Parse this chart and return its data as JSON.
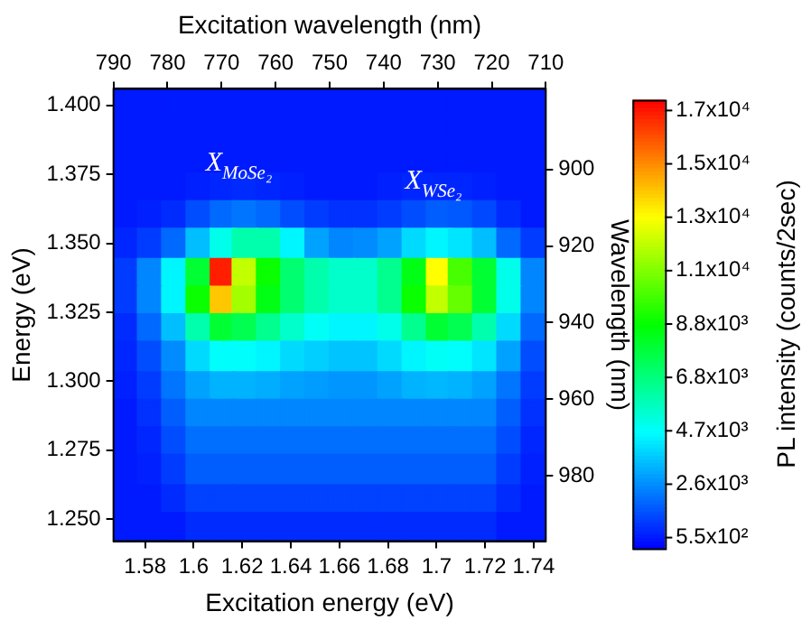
{
  "chart_data": {
    "type": "scatter",
    "marker": "square",
    "xlabel": "Excitation energy (eV)",
    "ylabel": "Energy (eV)",
    "x2label": "Excitation wavelength (nm)",
    "y2label": "Wavelength (nm)",
    "clabel": "PL intensity (counts/2sec)",
    "x": [
      1.572,
      1.582,
      1.592,
      1.602,
      1.612,
      1.621,
      1.631,
      1.641,
      1.651,
      1.661,
      1.671,
      1.681,
      1.691,
      1.701,
      1.71,
      1.72,
      1.73,
      1.74
    ],
    "series": [
      {
        "values": [
          1.401,
          1.401,
          1.401,
          1.401,
          1.401,
          1.401,
          1.401,
          1.401,
          1.401,
          1.401,
          1.401,
          1.401,
          1.401,
          1.401,
          1.401,
          1.401,
          1.401,
          1.401
        ],
        "cvalues": [
          600,
          600,
          600,
          600,
          600,
          600,
          600,
          600,
          600,
          600,
          600,
          600,
          600,
          600,
          600,
          600,
          600,
          600
        ],
        "colors": [
          "#001aff",
          "#001aff",
          "#001aff",
          "#001aff",
          "#001aff",
          "#001aff",
          "#001aff",
          "#001aff",
          "#001aff",
          "#001aff",
          "#001aff",
          "#001aff",
          "#001aff",
          "#001aff",
          "#001aff",
          "#001aff",
          "#001aff",
          "#001aff"
        ]
      },
      {
        "values": [
          1.391,
          1.391,
          1.391,
          1.391,
          1.391,
          1.391,
          1.391,
          1.391,
          1.391,
          1.391,
          1.391,
          1.391,
          1.391,
          1.391,
          1.391,
          1.391,
          1.391,
          1.391
        ],
        "cvalues": [
          600,
          600,
          600,
          600,
          600,
          600,
          600,
          600,
          600,
          600,
          600,
          600,
          600,
          600,
          600,
          600,
          600,
          600
        ],
        "colors": [
          "#001aff",
          "#001aff",
          "#001aff",
          "#001aff",
          "#001aff",
          "#001aff",
          "#001aff",
          "#001aff",
          "#001aff",
          "#001aff",
          "#001aff",
          "#001aff",
          "#001aff",
          "#001aff",
          "#001aff",
          "#001aff",
          "#001aff",
          "#001aff"
        ]
      },
      {
        "values": [
          1.38,
          1.38,
          1.38,
          1.38,
          1.38,
          1.38,
          1.38,
          1.38,
          1.38,
          1.38,
          1.38,
          1.38,
          1.38,
          1.38,
          1.38,
          1.38,
          1.38,
          1.38
        ],
        "cvalues": [
          600,
          600,
          600,
          600,
          600,
          600,
          600,
          600,
          600,
          600,
          600,
          600,
          600,
          600,
          600,
          600,
          600,
          600
        ],
        "colors": [
          "#001aff",
          "#001aff",
          "#001aff",
          "#001aff",
          "#001aff",
          "#001aff",
          "#001aff",
          "#001aff",
          "#001aff",
          "#001aff",
          "#001aff",
          "#001aff",
          "#001aff",
          "#001aff",
          "#001aff",
          "#001aff",
          "#001aff",
          "#001aff"
        ]
      },
      {
        "values": [
          1.37,
          1.37,
          1.37,
          1.37,
          1.37,
          1.37,
          1.37,
          1.37,
          1.37,
          1.37,
          1.37,
          1.37,
          1.37,
          1.37,
          1.37,
          1.37,
          1.37,
          1.37
        ],
        "cvalues": [
          600,
          600,
          600,
          700,
          800,
          900,
          800,
          700,
          600,
          600,
          600,
          700,
          800,
          800,
          800,
          700,
          600,
          600
        ],
        "colors": [
          "#001aff",
          "#001aff",
          "#001aff",
          "#0020ff",
          "#0026ff",
          "#002bff",
          "#0026ff",
          "#0020ff",
          "#001aff",
          "#001aff",
          "#001aff",
          "#0020ff",
          "#0026ff",
          "#0026ff",
          "#0026ff",
          "#0020ff",
          "#001aff",
          "#001aff"
        ]
      },
      {
        "values": [
          1.36,
          1.36,
          1.36,
          1.36,
          1.36,
          1.36,
          1.36,
          1.36,
          1.36,
          1.36,
          1.36,
          1.36,
          1.36,
          1.36,
          1.36,
          1.36,
          1.36,
          1.36
        ],
        "cvalues": [
          600,
          700,
          900,
          1500,
          2000,
          2200,
          2000,
          1500,
          1200,
          1000,
          1000,
          1200,
          1500,
          1800,
          1700,
          1400,
          900,
          600
        ],
        "colors": [
          "#001aff",
          "#0020ff",
          "#002bff",
          "#004dff",
          "#0069ff",
          "#0075ff",
          "#0069ff",
          "#004dff",
          "#003cff",
          "#0031ff",
          "#0031ff",
          "#003cff",
          "#004dff",
          "#005eff",
          "#0058ff",
          "#0048ff",
          "#002bff",
          "#001aff"
        ]
      },
      {
        "values": [
          1.35,
          1.35,
          1.35,
          1.35,
          1.35,
          1.35,
          1.35,
          1.35,
          1.35,
          1.35,
          1.35,
          1.35,
          1.35,
          1.35,
          1.35,
          1.35,
          1.35,
          1.35
        ],
        "cvalues": [
          800,
          1200,
          2000,
          3500,
          5000,
          6000,
          6000,
          4500,
          3000,
          2500,
          2600,
          3000,
          4000,
          4500,
          4200,
          3500,
          2000,
          1200
        ],
        "colors": [
          "#0026ff",
          "#003cff",
          "#0069ff",
          "#00beff",
          "#00ffea",
          "#00ffad",
          "#00ffad",
          "#00f6ff",
          "#00a2ff",
          "#0086ff",
          "#008bff",
          "#00a2ff",
          "#00daff",
          "#00f6ff",
          "#00e5ff",
          "#00beff",
          "#0069ff",
          "#003cff"
        ]
      },
      {
        "values": [
          1.339,
          1.339,
          1.339,
          1.339,
          1.339,
          1.339,
          1.339,
          1.339,
          1.339,
          1.339,
          1.339,
          1.339,
          1.339,
          1.339,
          1.339,
          1.339,
          1.339,
          1.339
        ],
        "cvalues": [
          1200,
          2500,
          4500,
          8000,
          17000,
          12000,
          9000,
          7000,
          6000,
          5500,
          5500,
          6500,
          8500,
          13000,
          10000,
          8000,
          5000,
          2500
        ],
        "colors": [
          "#003cff",
          "#0086ff",
          "#00f6ff",
          "#00ff33",
          "#ff1e00",
          "#c2ff00",
          "#0aff00",
          "#00ff70",
          "#00ffad",
          "#00ffcb",
          "#00ffcb",
          "#00ff8e",
          "#00ff14",
          "#ffff00",
          "#47ff00",
          "#00ff33",
          "#00ffea",
          "#0086ff"
        ]
      },
      {
        "values": [
          1.329,
          1.329,
          1.329,
          1.329,
          1.329,
          1.329,
          1.329,
          1.329,
          1.329,
          1.329,
          1.329,
          1.329,
          1.329,
          1.329,
          1.329,
          1.329,
          1.329,
          1.329
        ],
        "cvalues": [
          1200,
          2500,
          4500,
          9000,
          14000,
          11500,
          8500,
          7000,
          6000,
          5500,
          5500,
          6500,
          9000,
          12000,
          10500,
          8000,
          5000,
          2500
        ],
        "colors": [
          "#003cff",
          "#0086ff",
          "#00f6ff",
          "#0aff00",
          "#ffc700",
          "#a3ff00",
          "#00ff14",
          "#00ff70",
          "#00ffad",
          "#00ffcb",
          "#00ffcb",
          "#00ff8e",
          "#0aff00",
          "#c2ff00",
          "#66ff00",
          "#00ff33",
          "#00ffea",
          "#0086ff"
        ]
      },
      {
        "values": [
          1.319,
          1.319,
          1.319,
          1.319,
          1.319,
          1.319,
          1.319,
          1.319,
          1.319,
          1.319,
          1.319,
          1.319,
          1.319,
          1.319,
          1.319,
          1.319,
          1.319,
          1.319
        ],
        "cvalues": [
          900,
          2000,
          3500,
          6000,
          8000,
          7500,
          6500,
          5500,
          4800,
          4500,
          4500,
          5000,
          6500,
          8000,
          7500,
          6000,
          4000,
          2000
        ],
        "colors": [
          "#002bff",
          "#0069ff",
          "#00beff",
          "#00ffad",
          "#00ff33",
          "#00ff51",
          "#00ff8e",
          "#00ffcb",
          "#00fff6",
          "#00f6ff",
          "#00f6ff",
          "#00ffea",
          "#00ff8e",
          "#00ff33",
          "#00ff51",
          "#00ffad",
          "#00daff",
          "#0069ff"
        ]
      },
      {
        "values": [
          1.309,
          1.309,
          1.309,
          1.309,
          1.309,
          1.309,
          1.309,
          1.309,
          1.309,
          1.309,
          1.309,
          1.309,
          1.309,
          1.309,
          1.309,
          1.309,
          1.309,
          1.309
        ],
        "cvalues": [
          800,
          1500,
          2600,
          4000,
          4700,
          4700,
          4500,
          4000,
          3800,
          3600,
          3600,
          4000,
          4500,
          4800,
          4700,
          4200,
          3000,
          1500
        ],
        "colors": [
          "#0026ff",
          "#004dff",
          "#008bff",
          "#00daff",
          "#00fffc",
          "#00fffc",
          "#00f6ff",
          "#00daff",
          "#00cfff",
          "#00c4ff",
          "#00c4ff",
          "#00daff",
          "#00f6ff",
          "#00fff6",
          "#00fffc",
          "#00e5ff",
          "#00a2ff",
          "#004dff"
        ]
      },
      {
        "values": [
          1.298,
          1.298,
          1.298,
          1.298,
          1.298,
          1.298,
          1.298,
          1.298,
          1.298,
          1.298,
          1.298,
          1.298,
          1.298,
          1.298,
          1.298,
          1.298,
          1.298,
          1.298
        ],
        "cvalues": [
          700,
          1200,
          2200,
          3000,
          3300,
          3300,
          3200,
          3000,
          2900,
          2800,
          2800,
          3000,
          3300,
          3400,
          3300,
          3000,
          2200,
          1200
        ],
        "colors": [
          "#0020ff",
          "#003cff",
          "#0075ff",
          "#00a2ff",
          "#00b3ff",
          "#00b3ff",
          "#00adff",
          "#00a2ff",
          "#009cff",
          "#0096ff",
          "#0096ff",
          "#00a2ff",
          "#00b3ff",
          "#00b8ff",
          "#00b3ff",
          "#00a2ff",
          "#0075ff",
          "#003cff"
        ]
      },
      {
        "values": [
          1.288,
          1.288,
          1.288,
          1.288,
          1.288,
          1.288,
          1.288,
          1.288,
          1.288,
          1.288,
          1.288,
          1.288,
          1.288,
          1.288,
          1.288,
          1.288,
          1.288,
          1.288
        ],
        "cvalues": [
          600,
          1000,
          1800,
          2500,
          2500,
          2500,
          2500,
          2500,
          2500,
          2500,
          2500,
          2500,
          2500,
          2500,
          2500,
          2500,
          1800,
          1000
        ],
        "colors": [
          "#001aff",
          "#0031ff",
          "#005eff",
          "#0086ff",
          "#0086ff",
          "#0086ff",
          "#0086ff",
          "#0086ff",
          "#0086ff",
          "#0086ff",
          "#0086ff",
          "#0086ff",
          "#0086ff",
          "#0086ff",
          "#0086ff",
          "#0086ff",
          "#005eff",
          "#0031ff"
        ]
      },
      {
        "values": [
          1.278,
          1.278,
          1.278,
          1.278,
          1.278,
          1.278,
          1.278,
          1.278,
          1.278,
          1.278,
          1.278,
          1.278,
          1.278,
          1.278,
          1.278,
          1.278,
          1.278,
          1.278
        ],
        "cvalues": [
          600,
          800,
          1500,
          2100,
          2100,
          2100,
          2100,
          2100,
          2100,
          2100,
          2100,
          2100,
          2100,
          2100,
          2100,
          2100,
          1500,
          800
        ],
        "colors": [
          "#001aff",
          "#0026ff",
          "#004dff",
          "#006fff",
          "#006fff",
          "#006fff",
          "#006fff",
          "#006fff",
          "#006fff",
          "#006fff",
          "#006fff",
          "#006fff",
          "#006fff",
          "#006fff",
          "#006fff",
          "#006fff",
          "#004dff",
          "#0026ff"
        ]
      },
      {
        "values": [
          1.268,
          1.268,
          1.268,
          1.268,
          1.268,
          1.268,
          1.268,
          1.268,
          1.268,
          1.268,
          1.268,
          1.268,
          1.268,
          1.268,
          1.268,
          1.268,
          1.268,
          1.268
        ],
        "cvalues": [
          600,
          700,
          1200,
          1800,
          1800,
          1800,
          1800,
          1800,
          1800,
          1800,
          1800,
          1800,
          1800,
          1800,
          1800,
          1800,
          1200,
          700
        ],
        "colors": [
          "#001aff",
          "#0020ff",
          "#003cff",
          "#005eff",
          "#005eff",
          "#005eff",
          "#005eff",
          "#005eff",
          "#005eff",
          "#005eff",
          "#005eff",
          "#005eff",
          "#005eff",
          "#005eff",
          "#005eff",
          "#005eff",
          "#003cff",
          "#0020ff"
        ]
      },
      {
        "values": [
          1.257,
          1.257,
          1.257,
          1.257,
          1.257,
          1.257,
          1.257,
          1.257,
          1.257,
          1.257,
          1.257,
          1.257,
          1.257,
          1.257,
          1.257,
          1.257,
          1.257,
          1.257
        ],
        "cvalues": [
          600,
          600,
          900,
          1300,
          1300,
          1300,
          1300,
          1300,
          1300,
          1300,
          1300,
          1300,
          1300,
          1300,
          1300,
          1300,
          900,
          600
        ],
        "colors": [
          "#001aff",
          "#001aff",
          "#002bff",
          "#0042ff",
          "#0042ff",
          "#0042ff",
          "#0042ff",
          "#0042ff",
          "#0042ff",
          "#0042ff",
          "#0042ff",
          "#0042ff",
          "#0042ff",
          "#0042ff",
          "#0042ff",
          "#0042ff",
          "#002bff",
          "#001aff"
        ]
      },
      {
        "values": [
          1.247,
          1.247,
          1.247,
          1.247,
          1.247,
          1.247,
          1.247,
          1.247,
          1.247,
          1.247,
          1.247,
          1.247,
          1.247,
          1.247,
          1.247,
          1.247,
          1.247,
          1.247
        ],
        "cvalues": [
          600,
          600,
          600,
          900,
          900,
          900,
          900,
          900,
          900,
          900,
          900,
          900,
          900,
          900,
          900,
          900,
          600,
          600
        ],
        "colors": [
          "#001aff",
          "#001aff",
          "#001aff",
          "#002bff",
          "#002bff",
          "#002bff",
          "#002bff",
          "#002bff",
          "#002bff",
          "#002bff",
          "#002bff",
          "#002bff",
          "#002bff",
          "#002bff",
          "#002bff",
          "#002bff",
          "#001aff",
          "#001aff"
        ]
      }
    ],
    "xlim": [
      1.567,
      1.745
    ],
    "xticks": [
      1.58,
      1.6,
      1.62,
      1.64,
      1.66,
      1.68,
      1.7,
      1.72,
      1.74
    ],
    "ylim": [
      1.242,
      1.406
    ],
    "yticks": [
      {
        "value": 1.25,
        "label": "1.250"
      },
      {
        "value": 1.275,
        "label": "1.275"
      },
      {
        "value": 1.3,
        "label": "1.300"
      },
      {
        "value": 1.325,
        "label": "1.325"
      },
      {
        "value": 1.35,
        "label": "1.350"
      },
      {
        "value": 1.375,
        "label": "1.375"
      },
      {
        "value": 1.4,
        "label": "1.400"
      }
    ],
    "x2lim": [
      790,
      710
    ],
    "x2ticks": [
      790,
      780,
      770,
      760,
      750,
      740,
      730,
      720,
      710
    ],
    "y2lim": [
      997,
      879
    ],
    "y2ticks": [
      900,
      920,
      940,
      960,
      980
    ],
    "clim": [
      130,
      17530
    ],
    "cticks": [
      {
        "value": 550,
        "label": "5.5x10²"
      },
      {
        "value": 2620,
        "label": "2.6x10³"
      },
      {
        "value": 4690,
        "label": "4.7x10³"
      },
      {
        "value": 6760,
        "label": "6.8x10³"
      },
      {
        "value": 8830,
        "label": "8.8x10³"
      },
      {
        "value": 10900,
        "label": "1.1x10⁴"
      },
      {
        "value": 12970,
        "label": "1.3x10⁴"
      },
      {
        "value": 15040,
        "label": "1.5x10⁴"
      },
      {
        "value": 17110,
        "label": "1.7x10⁴"
      }
    ],
    "annotations": [
      "X$_{MoSe₂}$",
      "X$_{WSe₂}$"
    ]
  }
}
